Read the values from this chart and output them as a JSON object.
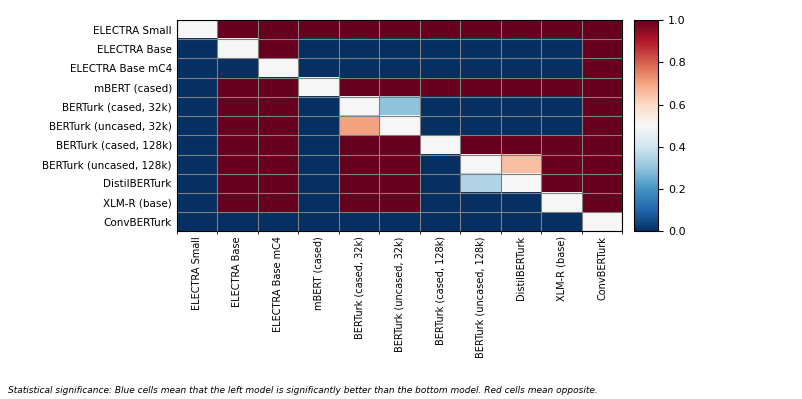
{
  "title": "",
  "models": [
    "ELECTRA Small",
    "ELECTRA Base",
    "ELECTRA Base mC4",
    "mBERT (cased)",
    "BERTurk (cased, 32k)",
    "BERTurk (uncased, 32k)",
    "BERTurk (cased, 128k)",
    "BERTurk (uncased, 128k)",
    "DistilBERTurk",
    "XLM-R (base)",
    "ConvBERTurk"
  ],
  "matrix": [
    [
      0.5,
      1.0,
      1.0,
      1.0,
      1.0,
      1.0,
      1.0,
      1.0,
      1.0,
      1.0,
      1.0
    ],
    [
      0.0,
      0.5,
      1.0,
      0.0,
      0.0,
      0.0,
      0.0,
      0.0,
      0.0,
      0.0,
      1.0
    ],
    [
      0.0,
      0.0,
      0.5,
      0.0,
      0.0,
      0.0,
      0.0,
      0.0,
      0.0,
      0.0,
      1.0
    ],
    [
      0.0,
      1.0,
      1.0,
      0.5,
      1.0,
      1.0,
      1.0,
      1.0,
      1.0,
      1.0,
      1.0
    ],
    [
      0.0,
      1.0,
      1.0,
      0.0,
      0.5,
      0.3,
      0.0,
      0.0,
      0.0,
      0.0,
      1.0
    ],
    [
      0.0,
      1.0,
      1.0,
      0.0,
      0.7,
      0.5,
      0.0,
      0.0,
      0.0,
      0.0,
      1.0
    ],
    [
      0.0,
      1.0,
      1.0,
      0.0,
      1.0,
      1.0,
      0.5,
      1.0,
      1.0,
      1.0,
      1.0
    ],
    [
      0.0,
      1.0,
      1.0,
      0.0,
      1.0,
      1.0,
      0.0,
      0.5,
      0.65,
      1.0,
      1.0
    ],
    [
      0.0,
      1.0,
      1.0,
      0.0,
      1.0,
      1.0,
      0.0,
      0.35,
      0.5,
      1.0,
      1.0
    ],
    [
      0.0,
      1.0,
      1.0,
      0.0,
      1.0,
      1.0,
      0.0,
      0.0,
      0.0,
      0.5,
      1.0
    ],
    [
      0.0,
      0.0,
      0.0,
      0.0,
      0.0,
      0.0,
      0.0,
      0.0,
      0.0,
      0.0,
      0.5
    ]
  ],
  "footnote": "Statistical significance: Blue cells mean that the left model is significantly better than the bottom model. Red cells mean opposite.",
  "cmap": "RdBu_r",
  "vmin": 0.0,
  "vmax": 1.0,
  "background_color": "#ffffff",
  "grid_color": "#808080",
  "ylabel_fontsize": 7.5,
  "xlabel_fontsize": 7.0,
  "footnote_fontsize": 6.5,
  "colorbar_tick_fontsize": 8
}
